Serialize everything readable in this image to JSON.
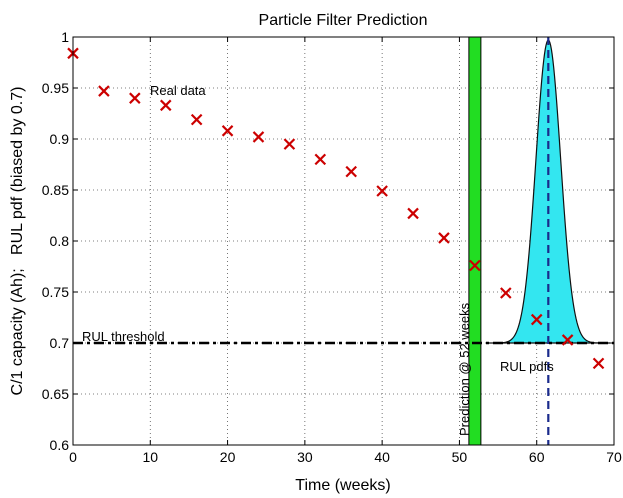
{
  "chart_data": {
    "type": "scatter",
    "title": "Particle Filter Prediction",
    "xlabel": "Time (weeks)",
    "ylabel": "C/1 capacity (Ah);   RUL pdf (biased by 0.7)",
    "xlim": [
      0,
      70
    ],
    "ylim": [
      0.6,
      1.0
    ],
    "xticks": [
      "0",
      "10",
      "20",
      "30",
      "40",
      "50",
      "60",
      "70"
    ],
    "yticks": [
      "0.6",
      "0.65",
      "0.7",
      "0.75",
      "0.8",
      "0.85",
      "0.9",
      "0.95",
      "1"
    ],
    "grid": true,
    "series": [
      {
        "name": "Real data",
        "marker": "x",
        "color": "#cc0000",
        "points": [
          {
            "x": 0,
            "y": 0.984
          },
          {
            "x": 4,
            "y": 0.947
          },
          {
            "x": 8,
            "y": 0.94
          },
          {
            "x": 12,
            "y": 0.933
          },
          {
            "x": 16,
            "y": 0.919
          },
          {
            "x": 20,
            "y": 0.908
          },
          {
            "x": 24,
            "y": 0.902
          },
          {
            "x": 28,
            "y": 0.895
          },
          {
            "x": 32,
            "y": 0.88
          },
          {
            "x": 36,
            "y": 0.868
          },
          {
            "x": 40,
            "y": 0.849
          },
          {
            "x": 44,
            "y": 0.827
          },
          {
            "x": 48,
            "y": 0.803
          },
          {
            "x": 52,
            "y": 0.776
          },
          {
            "x": 56,
            "y": 0.749
          },
          {
            "x": 60,
            "y": 0.723
          },
          {
            "x": 64,
            "y": 0.703
          },
          {
            "x": 68,
            "y": 0.68
          }
        ]
      }
    ],
    "threshold": {
      "y": 0.7,
      "label": "RUL threshold",
      "style": "dash-dot",
      "color": "#000000"
    },
    "prediction_band": {
      "x": 52,
      "label": "Prediction @ 52 weeks",
      "color": "#22dd22"
    },
    "rul_pdf": {
      "label": "RUL pdfs",
      "center_x": 61.5,
      "sigma": 1.6,
      "baseline": 0.7,
      "peak": 0.997,
      "fill": "#33e6f0",
      "mean_line_style": "dashed",
      "mean_line_color": "#1a2b8c"
    },
    "annotations": {
      "real_data": "Real data"
    }
  }
}
